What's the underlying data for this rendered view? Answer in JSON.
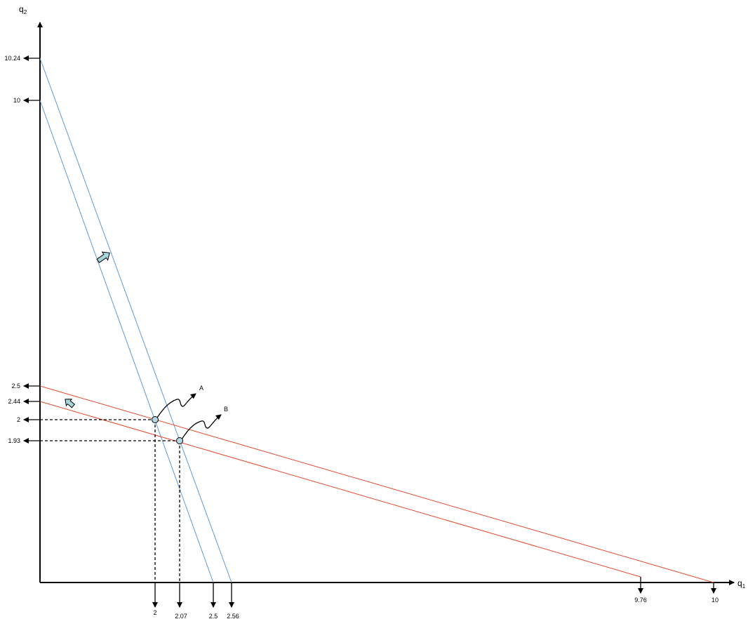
{
  "axes": {
    "y_name": "q",
    "y_sub": "2",
    "x_name": "q",
    "x_sub": "1"
  },
  "y_ticks": [
    "10.24",
    "10",
    "2.5",
    "2.44",
    "2",
    "1.93"
  ],
  "x_ticks": [
    "2",
    "2.07",
    "2.5",
    "2.56",
    "9.76",
    "10"
  ],
  "points": [
    {
      "label": "A"
    },
    {
      "label": "B"
    }
  ],
  "colors": {
    "blue_line": "#5b9bd5",
    "red_line": "#e8462a",
    "point_fill": "#b4d7e1",
    "shift_arrow_fill": "#a9d4dc",
    "axis": "#000000"
  }
}
